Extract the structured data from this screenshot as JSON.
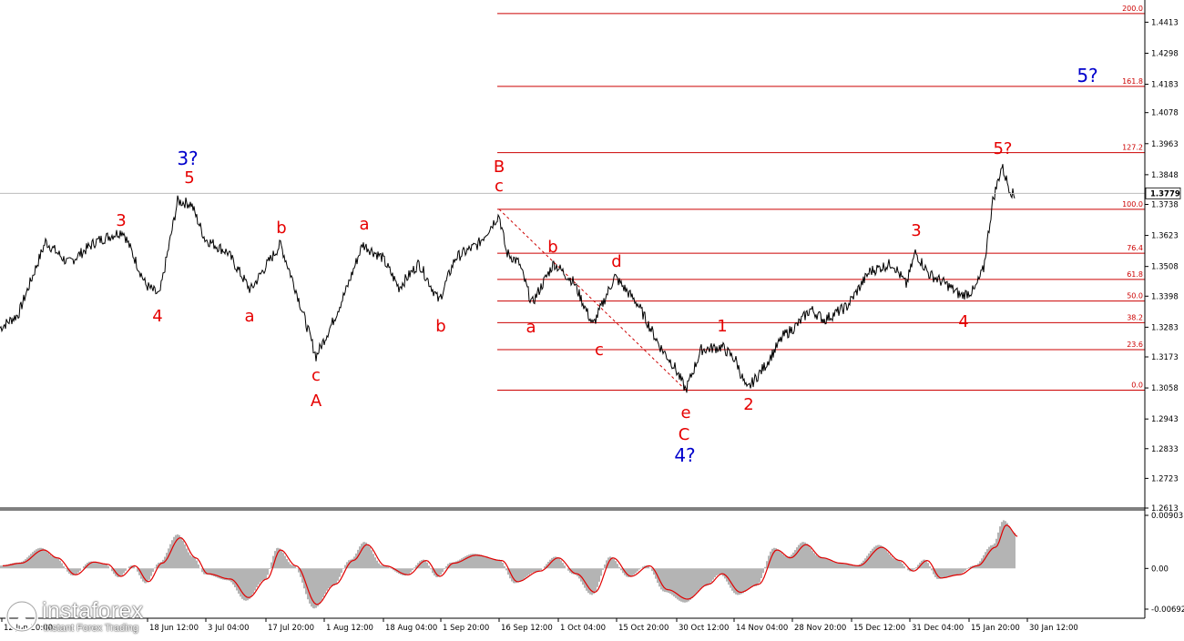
{
  "chart_data": [
    {
      "type": "line",
      "title": "",
      "ylim": [
        1.2613,
        1.4475
      ],
      "y_ticks": [
        "1.4413",
        "1.4298",
        "1.4183",
        "1.4078",
        "1.3963",
        "1.3848",
        "1.3738",
        "1.3623",
        "1.3508",
        "1.3398",
        "1.3283",
        "1.3173",
        "1.3058",
        "1.2943",
        "1.2833",
        "1.2723",
        "1.2613"
      ],
      "x_ticks": [
        "12 Jun 20:00",
        "18 Jun 12:00",
        "3 Jul 04:00",
        "17 Jul 20:00",
        "1 Aug 12:00",
        "18 Aug 04:00",
        "1 Sep 20:00",
        "16 Sep 12:00",
        "1 Oct 04:00",
        "15 Oct 20:00",
        "30 Oct 12:00",
        "14 Nov 04:00",
        "28 Nov 20:00",
        "15 Dec 12:00",
        "31 Dec 04:00",
        "15 Jan 20:00",
        "30 Jan 12:00"
      ],
      "current_price": "1.3779",
      "series": [
        {
          "x": [
            "12 Jun 20:00",
            "18 Jun 12:00",
            "3 Jul 04:00",
            "17 Jul 20:00",
            "1 Aug 12:00",
            "18 Aug 04:00",
            "1 Sep 20:00",
            "16 Sep 12:00",
            "1 Oct 04:00",
            "15 Oct 20:00",
            "30 Oct 12:00",
            "14 Nov 04:00",
            "28 Nov 20:00",
            "15 Dec 12:00",
            "31 Dec 04:00",
            "15 Jan 20:00",
            "30 Jan 12:00"
          ],
          "y": [
            1.3298,
            1.3545,
            1.3665,
            1.3505,
            1.3165,
            1.3582,
            1.3525,
            1.3715,
            1.3472,
            1.3418,
            1.301,
            1.3052,
            1.332,
            1.339,
            1.3455,
            1.342,
            1.3779
          ]
        }
      ],
      "fibonacci_levels": [
        {
          "label": "200.0",
          "value": 1.4445
        },
        {
          "label": "161.8",
          "value": 1.4175
        },
        {
          "label": "127.2",
          "value": 1.393
        },
        {
          "label": "100.0",
          "value": 1.372
        },
        {
          "label": "76.4",
          "value": 1.3557
        },
        {
          "label": "61.8",
          "value": 1.346
        },
        {
          "label": "50.0",
          "value": 1.338
        },
        {
          "label": "38.2",
          "value": 1.33
        },
        {
          "label": "23.6",
          "value": 1.32
        },
        {
          "label": "0.0",
          "value": 1.305
        }
      ],
      "wave_labels": [
        {
          "text": "3?",
          "color": "blue"
        },
        {
          "text": "5",
          "color": "red"
        },
        {
          "text": "3",
          "color": "red"
        },
        {
          "text": "4",
          "color": "red"
        },
        {
          "text": "b",
          "color": "red"
        },
        {
          "text": "a",
          "color": "red"
        },
        {
          "text": "a",
          "color": "red"
        },
        {
          "text": "c",
          "color": "red"
        },
        {
          "text": "A",
          "color": "red"
        },
        {
          "text": "b",
          "color": "red"
        },
        {
          "text": "B",
          "color": "red"
        },
        {
          "text": "c",
          "color": "red"
        },
        {
          "text": "a",
          "color": "red"
        },
        {
          "text": "b",
          "color": "red"
        },
        {
          "text": "c",
          "color": "red"
        },
        {
          "text": "d",
          "color": "red"
        },
        {
          "text": "e",
          "color": "red"
        },
        {
          "text": "C",
          "color": "red"
        },
        {
          "text": "4?",
          "color": "blue"
        },
        {
          "text": "1",
          "color": "red"
        },
        {
          "text": "2",
          "color": "red"
        },
        {
          "text": "3",
          "color": "red"
        },
        {
          "text": "4",
          "color": "red"
        },
        {
          "text": "5?",
          "color": "red"
        },
        {
          "text": "5?",
          "color": "blue"
        }
      ]
    },
    {
      "type": "area",
      "title": "",
      "ylim": [
        -0.00692,
        0.00903
      ],
      "y_ticks": [
        "0.00903",
        "0.00",
        "-0.00692"
      ],
      "series": [
        {
          "x": [
            "12 Jun 20:00",
            "18 Jun 12:00",
            "3 Jul 04:00",
            "17 Jul 20:00",
            "1 Aug 12:00",
            "18 Aug 04:00",
            "1 Sep 20:00",
            "16 Sep 12:00",
            "1 Oct 04:00",
            "15 Oct 20:00",
            "30 Oct 12:00",
            "14 Nov 04:00",
            "28 Nov 20:00",
            "15 Dec 12:00",
            "31 Dec 04:00",
            "15 Jan 20:00",
            "30 Jan 12:00"
          ],
          "y": [
            0.001,
            0.0012,
            0.0038,
            -0.001,
            -0.0068,
            0.0025,
            -0.002,
            0.0015,
            -0.003,
            0.0018,
            -0.006,
            -0.0035,
            0.002,
            0.002,
            -0.0005,
            -0.0012,
            0.008
          ]
        }
      ]
    }
  ],
  "colors": {
    "price_line": "#000000",
    "fib_line": "#cc0000",
    "wave_red": "#e60000",
    "wave_blue": "#0000cc",
    "histogram": "#b4b4b4",
    "signal_line": "#e00000"
  },
  "brand": {
    "name": "instaforex",
    "tagline": "Instant Forex Trading"
  }
}
